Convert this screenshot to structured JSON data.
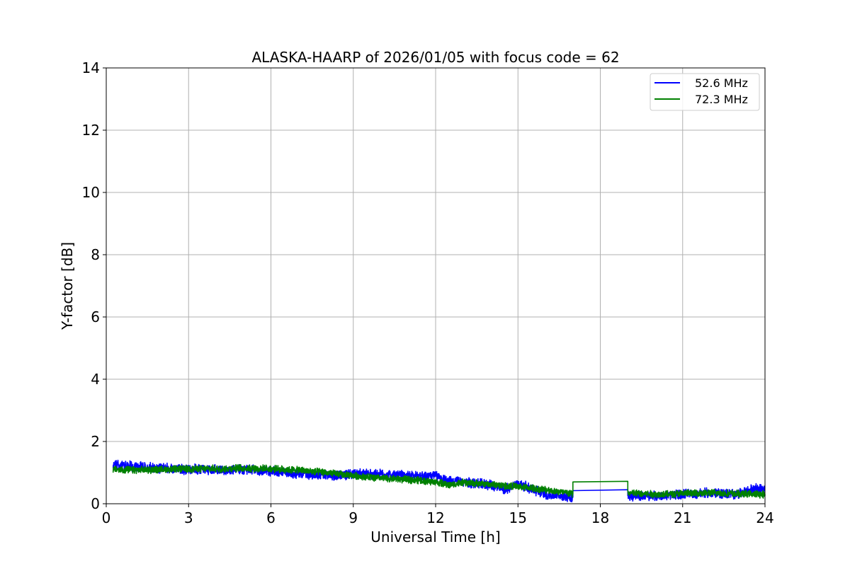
{
  "chart_data": {
    "type": "line",
    "title": "ALASKA-HAARP of 2026/01/05 with focus code = 62",
    "xlabel": "Universal Time [h]",
    "ylabel": "Y-factor [dB]",
    "xlim": [
      0,
      24
    ],
    "ylim": [
      0,
      14
    ],
    "xticks": [
      0,
      3,
      6,
      9,
      12,
      15,
      18,
      21,
      24
    ],
    "yticks": [
      0,
      2,
      4,
      6,
      8,
      10,
      12,
      14
    ],
    "grid": true,
    "legend_position": "top-right",
    "series": [
      {
        "name": "52.6 MHz",
        "color": "#0000ff",
        "noise_amplitude": 0.14,
        "x": [
          0.25,
          1,
          2,
          3,
          4,
          5,
          6,
          7,
          8,
          9,
          10,
          11,
          12,
          12.5,
          13,
          14,
          14.5,
          15,
          16,
          17,
          17,
          19,
          19,
          19.3,
          20,
          21,
          22,
          23,
          23.5,
          24
        ],
        "y": [
          1.25,
          1.2,
          1.15,
          1.1,
          1.1,
          1.1,
          1.05,
          0.98,
          0.9,
          0.95,
          0.95,
          0.9,
          0.9,
          0.72,
          0.7,
          0.6,
          0.45,
          0.65,
          0.3,
          0.22,
          0.42,
          0.45,
          0.25,
          0.25,
          0.25,
          0.3,
          0.35,
          0.3,
          0.45,
          0.5
        ]
      },
      {
        "name": "72.3 MHz",
        "color": "#008000",
        "noise_amplitude": 0.1,
        "x": [
          0.25,
          1,
          2,
          3,
          4,
          5,
          6,
          7,
          8,
          9,
          10,
          11,
          12,
          12.5,
          13,
          14,
          15,
          16,
          17,
          17,
          19,
          19,
          20,
          21,
          22,
          23,
          24
        ],
        "y": [
          1.1,
          1.08,
          1.1,
          1.12,
          1.12,
          1.15,
          1.12,
          1.08,
          1.0,
          0.9,
          0.82,
          0.78,
          0.7,
          0.6,
          0.68,
          0.62,
          0.55,
          0.45,
          0.32,
          0.7,
          0.72,
          0.35,
          0.3,
          0.33,
          0.35,
          0.32,
          0.3
        ]
      }
    ]
  }
}
